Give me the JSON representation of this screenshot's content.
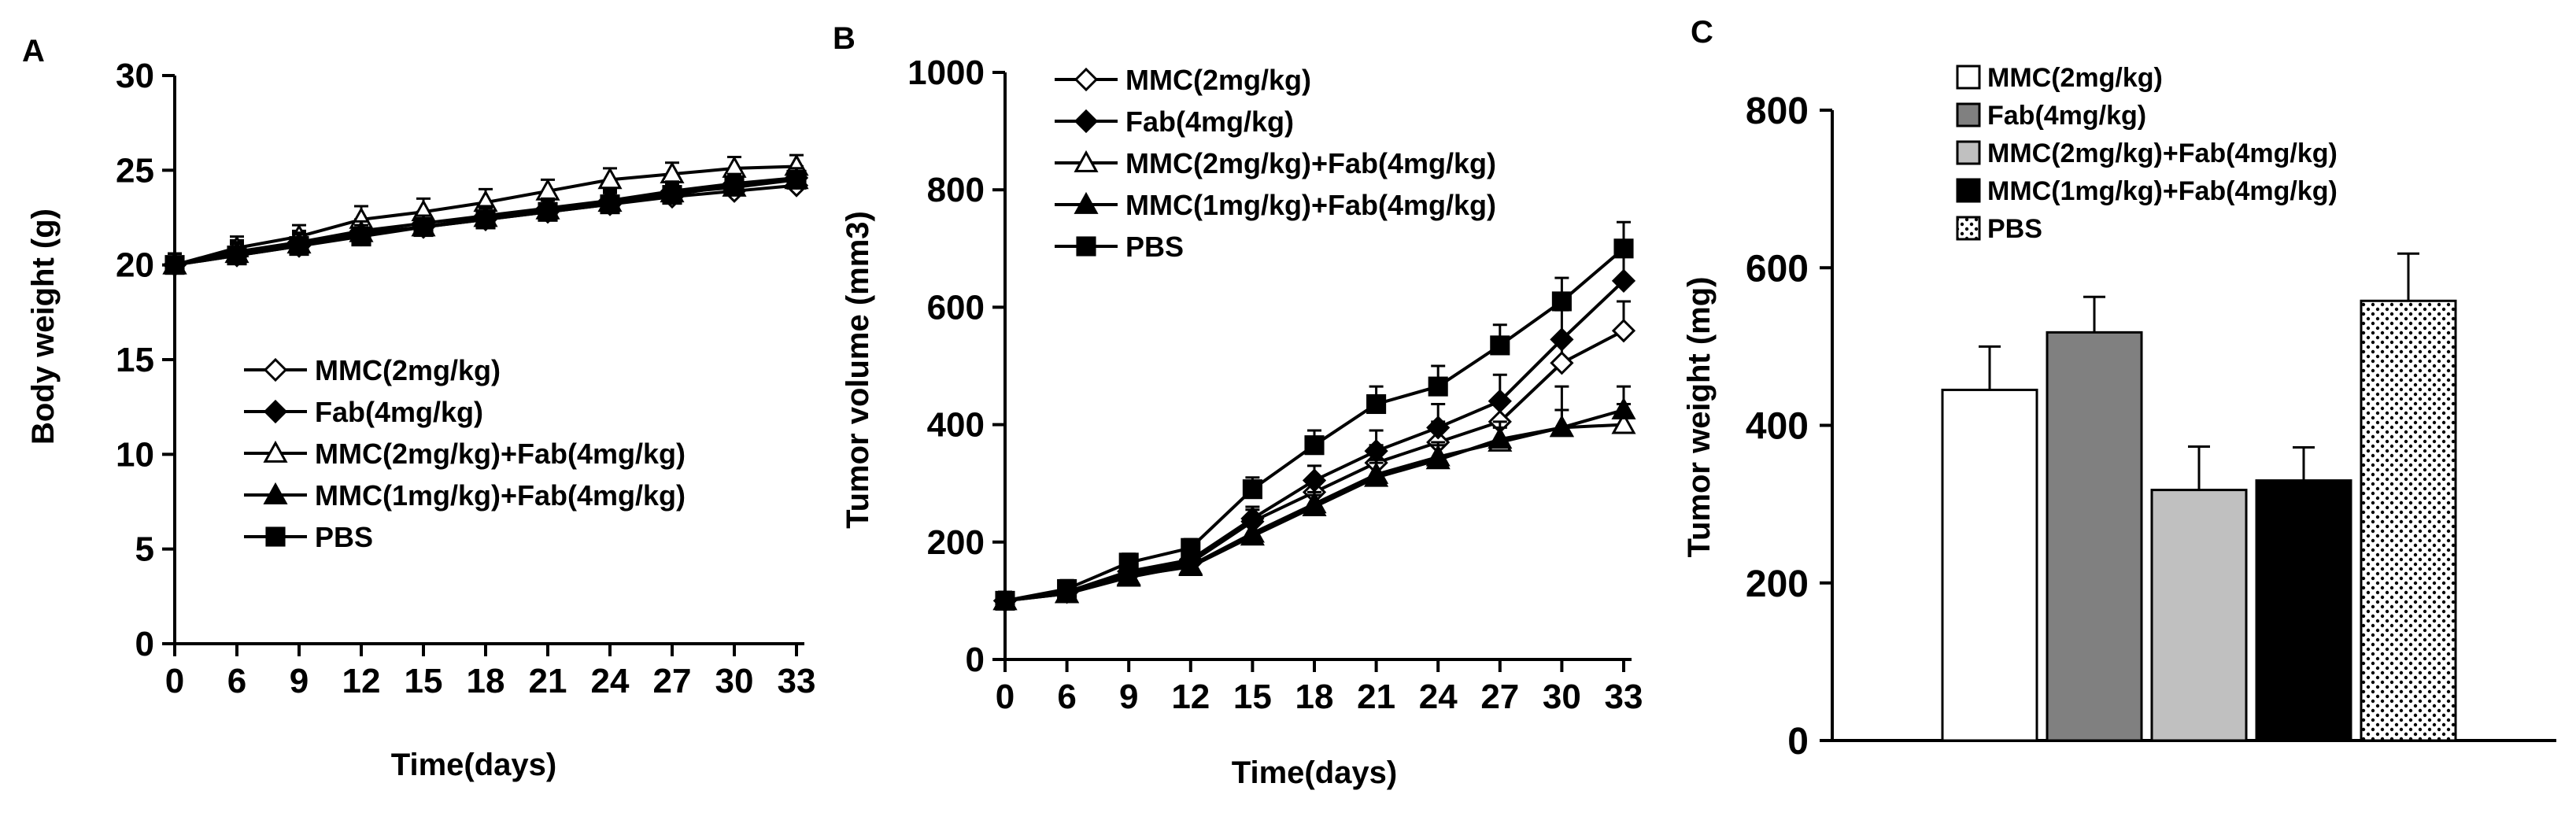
{
  "chart_data": [
    {
      "panel": "A",
      "type": "line",
      "xlabel": "Time(days)",
      "ylabel": "Body weight (g)",
      "x": [
        0,
        6,
        9,
        12,
        15,
        18,
        21,
        24,
        27,
        30,
        33
      ],
      "xticks": [
        "0",
        "6",
        "9",
        "12",
        "15",
        "18",
        "21",
        "24",
        "27",
        "30",
        "33"
      ],
      "ylim": [
        0,
        30
      ],
      "yticks": [
        "0",
        "5",
        "10",
        "15",
        "20",
        "25",
        "30"
      ],
      "legend_position": "center-left",
      "series": [
        {
          "name": "MMC(2mg/kg)",
          "marker": "diamond-open",
          "values": [
            20.0,
            20.5,
            21.0,
            21.6,
            22.0,
            22.4,
            22.8,
            23.2,
            23.6,
            23.9,
            24.2
          ],
          "errors": [
            0.6,
            0.6,
            0.6,
            0.6,
            0.6,
            0.6,
            0.6,
            0.6,
            0.6,
            0.6,
            0.6
          ]
        },
        {
          "name": "Fab(4mg/kg)",
          "marker": "diamond-filled",
          "values": [
            20.0,
            20.7,
            21.2,
            21.8,
            22.2,
            22.6,
            23.0,
            23.4,
            23.9,
            24.3,
            24.6
          ],
          "errors": [
            0.6,
            0.6,
            0.6,
            0.6,
            0.6,
            0.6,
            0.6,
            0.6,
            0.6,
            0.6,
            0.6
          ]
        },
        {
          "name": "MMC(2mg/kg)+Fab(4mg/kg)",
          "marker": "triangle-open",
          "values": [
            20.0,
            20.9,
            21.5,
            22.4,
            22.8,
            23.3,
            23.9,
            24.5,
            24.8,
            25.1,
            25.2
          ],
          "errors": [
            0.6,
            0.6,
            0.6,
            0.7,
            0.7,
            0.7,
            0.6,
            0.6,
            0.6,
            0.6,
            0.6
          ]
        },
        {
          "name": "MMC(1mg/kg)+Fab(4mg/kg)",
          "marker": "triangle-filled",
          "values": [
            20.0,
            20.6,
            21.1,
            21.7,
            22.0,
            22.5,
            22.9,
            23.3,
            23.8,
            24.1,
            24.5
          ],
          "errors": [
            0.6,
            0.6,
            0.6,
            0.6,
            0.6,
            0.6,
            0.6,
            0.6,
            0.6,
            0.6,
            0.6
          ]
        },
        {
          "name": "PBS",
          "marker": "square-filled",
          "values": [
            20.0,
            20.5,
            21.0,
            21.5,
            22.0,
            22.4,
            22.8,
            23.2,
            23.7,
            24.2,
            24.5
          ],
          "errors": [
            0.6,
            0.6,
            0.6,
            0.6,
            0.6,
            0.6,
            0.6,
            0.6,
            0.6,
            0.6,
            0.6
          ]
        }
      ]
    },
    {
      "panel": "B",
      "type": "line",
      "xlabel": "Time(days)",
      "ylabel": "Tumor volume (mm3)",
      "x": [
        0,
        6,
        9,
        12,
        15,
        18,
        21,
        24,
        27,
        30,
        33
      ],
      "xticks": [
        "0",
        "6",
        "9",
        "12",
        "15",
        "18",
        "21",
        "24",
        "27",
        "30",
        "33"
      ],
      "ylim": [
        0,
        1000
      ],
      "yticks": [
        "0",
        "200",
        "400",
        "600",
        "800",
        "1000"
      ],
      "legend_position": "top-left",
      "series": [
        {
          "name": "MMC(2mg/kg)",
          "marker": "diamond-open",
          "values": [
            100,
            115,
            145,
            165,
            235,
            285,
            335,
            370,
            405,
            505,
            560
          ],
          "errors": [
            15,
            15,
            15,
            15,
            20,
            25,
            30,
            35,
            40,
            45,
            50
          ]
        },
        {
          "name": "Fab(4mg/kg)",
          "marker": "diamond-filled",
          "values": [
            100,
            115,
            150,
            170,
            240,
            305,
            355,
            395,
            440,
            545,
            645
          ],
          "errors": [
            15,
            15,
            15,
            15,
            20,
            25,
            35,
            40,
            45,
            50,
            55
          ]
        },
        {
          "name": "MMC(2mg/kg)+Fab(4mg/kg)",
          "marker": "triangle-open",
          "values": [
            100,
            112,
            140,
            160,
            215,
            265,
            315,
            345,
            370,
            395,
            400
          ],
          "errors": [
            15,
            15,
            15,
            15,
            20,
            20,
            25,
            25,
            25,
            30,
            35
          ]
        },
        {
          "name": "MMC(1mg/kg)+Fab(4mg/kg)",
          "marker": "triangle-filled",
          "values": [
            100,
            112,
            142,
            158,
            210,
            260,
            310,
            340,
            375,
            395,
            425
          ],
          "errors": [
            15,
            15,
            15,
            15,
            20,
            20,
            25,
            25,
            30,
            70,
            40
          ]
        },
        {
          "name": "PBS",
          "marker": "square-filled",
          "values": [
            100,
            120,
            165,
            190,
            290,
            365,
            435,
            465,
            535,
            610,
            700
          ],
          "errors": [
            15,
            15,
            15,
            15,
            20,
            25,
            30,
            35,
            35,
            40,
            45
          ]
        }
      ]
    },
    {
      "panel": "C",
      "type": "bar",
      "xlabel": "",
      "ylabel": "Tumor weight (mg)",
      "ylim": [
        0,
        800
      ],
      "yticks": [
        "0",
        "200",
        "400",
        "600",
        "800"
      ],
      "legend_position": "top-left",
      "categories": [
        "MMC(2mg/kg)",
        "Fab(4mg/kg)",
        "MMC(2mg/kg)+Fab(4mg/kg)",
        "MMC(1mg/kg)+Fab(4mg/kg)",
        "PBS"
      ],
      "values": [
        445,
        518,
        318,
        330,
        558
      ],
      "errors": [
        55,
        45,
        55,
        42,
        60
      ],
      "fills": [
        "#ffffff",
        "#808080",
        "#c0c0c0",
        "#000000",
        "dotted"
      ]
    }
  ],
  "panel_labels": {
    "a": "A",
    "b": "B",
    "c": "C"
  }
}
